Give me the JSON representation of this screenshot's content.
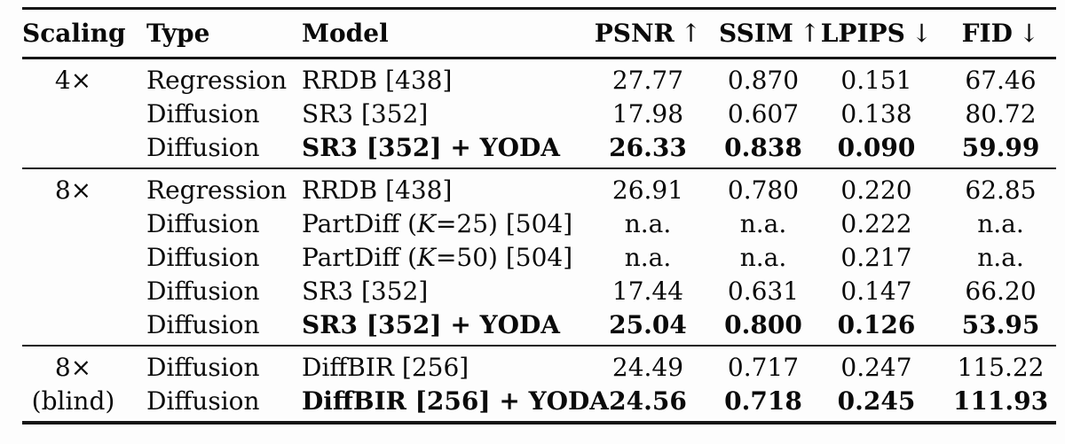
{
  "page": {
    "background_color": "#fdfdfd",
    "text_color": "#0a0a0a",
    "rule_color": "#161616"
  },
  "table": {
    "headers": [
      {
        "label": "Scaling",
        "arrow": ""
      },
      {
        "label": "Type",
        "arrow": ""
      },
      {
        "label": "Model",
        "arrow": ""
      },
      {
        "label": "PSNR",
        "arrow": "↑"
      },
      {
        "label": "SSIM",
        "arrow": "↑"
      },
      {
        "label": "LPIPS",
        "arrow": "↓"
      },
      {
        "label": "FID",
        "arrow": "↓"
      }
    ],
    "groups": [
      {
        "rows": [
          {
            "scaling": "4×",
            "type": "Regression",
            "bold": false,
            "model": [
              {
                "text": "RRDB [438]"
              }
            ],
            "metrics": [
              "27.77",
              "0.870",
              "0.151",
              "67.46"
            ]
          },
          {
            "scaling": "",
            "type": "Diffusion",
            "bold": false,
            "model": [
              {
                "text": "SR3 [352]"
              }
            ],
            "metrics": [
              "17.98",
              "0.607",
              "0.138",
              "80.72"
            ]
          },
          {
            "scaling": "",
            "type": "Diffusion",
            "bold": true,
            "model": [
              {
                "text": "SR3 [352] + YODA"
              }
            ],
            "metrics": [
              "26.33",
              "0.838",
              "0.090",
              "59.99"
            ]
          }
        ]
      },
      {
        "rows": [
          {
            "scaling": "8×",
            "type": "Regression",
            "bold": false,
            "model": [
              {
                "text": "RRDB [438]"
              }
            ],
            "metrics": [
              "26.91",
              "0.780",
              "0.220",
              "62.85"
            ]
          },
          {
            "scaling": "",
            "type": "Diffusion",
            "bold": false,
            "model": [
              {
                "text": "PartDiff ("
              },
              {
                "text": "K",
                "italic": true
              },
              {
                "text": "=25) [504]"
              }
            ],
            "metrics": [
              "n.a.",
              "n.a.",
              "0.222",
              "n.a."
            ]
          },
          {
            "scaling": "",
            "type": "Diffusion",
            "bold": false,
            "model": [
              {
                "text": "PartDiff ("
              },
              {
                "text": "K",
                "italic": true
              },
              {
                "text": "=50) [504]"
              }
            ],
            "metrics": [
              "n.a.",
              "n.a.",
              "0.217",
              "n.a."
            ]
          },
          {
            "scaling": "",
            "type": "Diffusion",
            "bold": false,
            "model": [
              {
                "text": "SR3 [352]"
              }
            ],
            "metrics": [
              "17.44",
              "0.631",
              "0.147",
              "66.20"
            ]
          },
          {
            "scaling": "",
            "type": "Diffusion",
            "bold": true,
            "model": [
              {
                "text": "SR3 [352] + YODA"
              }
            ],
            "metrics": [
              "25.04",
              "0.800",
              "0.126",
              "53.95"
            ]
          }
        ]
      },
      {
        "rows": [
          {
            "scaling": "8×",
            "type": "Diffusion",
            "bold": false,
            "model": [
              {
                "text": "DiffBIR [256]"
              }
            ],
            "metrics": [
              "24.49",
              "0.717",
              "0.247",
              "115.22"
            ]
          },
          {
            "scaling": "(blind)",
            "type": "Diffusion",
            "bold": true,
            "model": [
              {
                "text": "DiffBIR [256] + YODA"
              }
            ],
            "metrics": [
              "24.56",
              "0.718",
              "0.245",
              "111.93"
            ]
          }
        ]
      }
    ]
  }
}
